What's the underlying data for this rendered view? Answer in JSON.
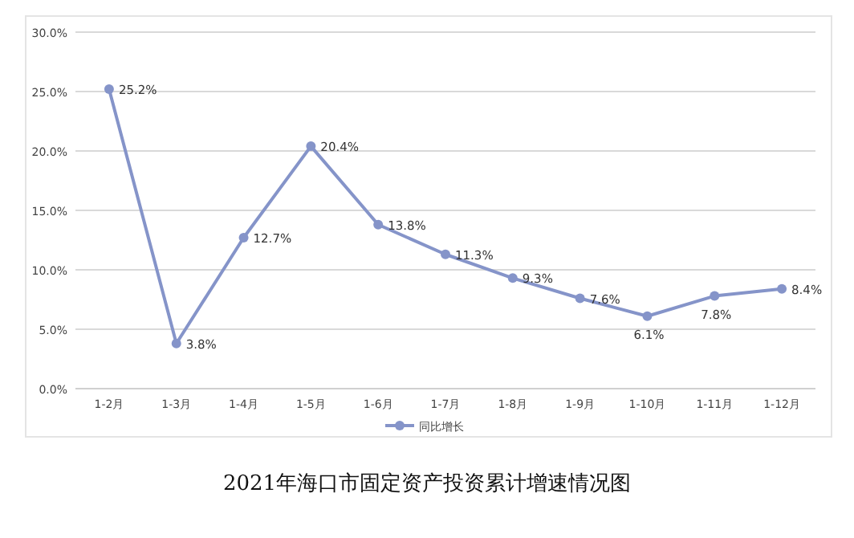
{
  "chart_data": {
    "type": "line",
    "title": "2021年海口市固定资产投资累计增速情况图",
    "categories": [
      "1-2月",
      "1-3月",
      "1-4月",
      "1-5月",
      "1-6月",
      "1-7月",
      "1-8月",
      "1-9月",
      "1-10月",
      "1-11月",
      "1-12月"
    ],
    "series": [
      {
        "name": "同比增长",
        "color": "#8594c9",
        "values": [
          25.2,
          3.8,
          12.7,
          20.4,
          13.8,
          11.3,
          9.3,
          7.6,
          6.1,
          7.8,
          8.4
        ],
        "value_labels": [
          "25.2%",
          "3.8%",
          "12.7%",
          "20.4%",
          "13.8%",
          "11.3%",
          "9.3%",
          "7.6%",
          "6.1%",
          "7.8%",
          "8.4%"
        ]
      }
    ],
    "ylim": [
      0,
      30
    ],
    "yticks": [
      {
        "value": 0,
        "label": "0.0%"
      },
      {
        "value": 5,
        "label": "5.0%"
      },
      {
        "value": 10,
        "label": "10.0%"
      },
      {
        "value": 15,
        "label": "15.0%"
      },
      {
        "value": 20,
        "label": "20.0%"
      },
      {
        "value": 25,
        "label": "25.0%"
      },
      {
        "value": 30,
        "label": "30.0%"
      }
    ],
    "grid": "y",
    "legend": "bottom",
    "marker": "circle",
    "line_style": "solid"
  }
}
